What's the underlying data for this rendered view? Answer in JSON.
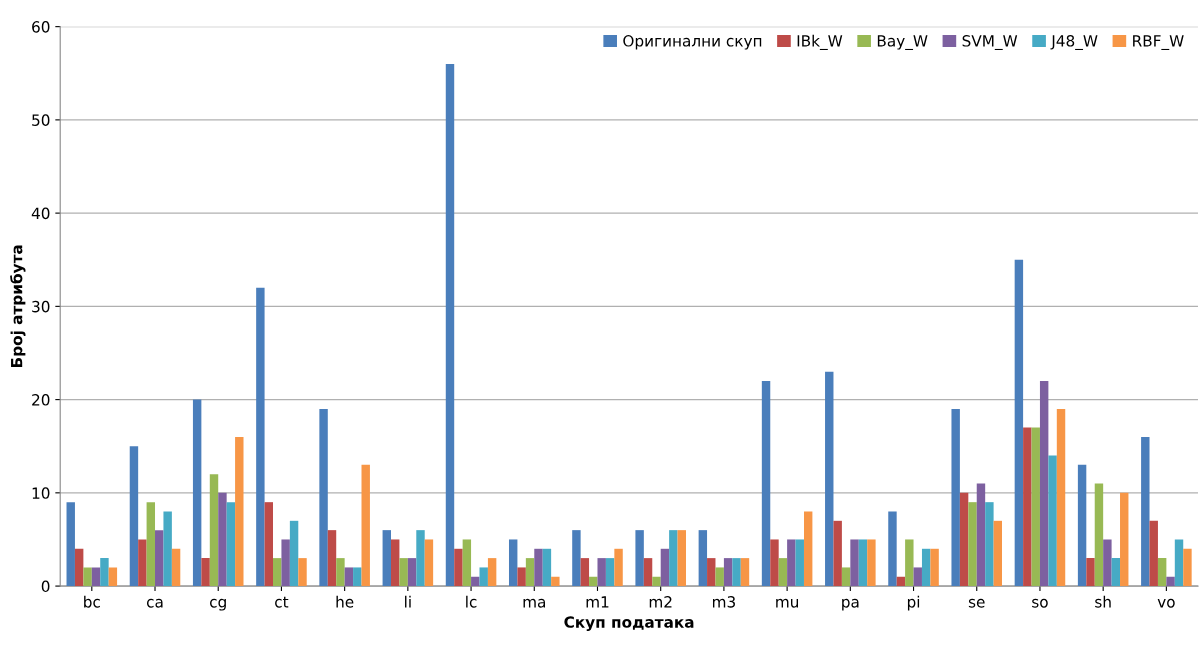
{
  "chart_data": {
    "type": "bar",
    "xlabel": "Скуп података",
    "ylabel": "Број атрибута",
    "categories": [
      "bc",
      "ca",
      "cg",
      "ct",
      "he",
      "li",
      "lc",
      "ma",
      "m1",
      "m2",
      "m3",
      "mu",
      "pa",
      "pi",
      "se",
      "so",
      "sh",
      "vo"
    ],
    "series": [
      {
        "name": "Оригинални скуп",
        "color": "#4a7ebb",
        "values": [
          9,
          15,
          20,
          32,
          19,
          6,
          56,
          5,
          6,
          6,
          6,
          22,
          23,
          8,
          19,
          35,
          13,
          16
        ]
      },
      {
        "name": "IBk_W",
        "color": "#be4b48",
        "values": [
          4,
          5,
          3,
          9,
          6,
          5,
          4,
          2,
          3,
          3,
          3,
          5,
          7,
          1,
          10,
          17,
          3,
          7
        ]
      },
      {
        "name": "Bay_W",
        "color": "#98b954",
        "values": [
          2,
          9,
          12,
          3,
          3,
          3,
          5,
          3,
          1,
          1,
          2,
          3,
          2,
          5,
          9,
          17,
          11,
          3
        ]
      },
      {
        "name": "SVM_W",
        "color": "#7d60a0",
        "values": [
          2,
          6,
          10,
          5,
          2,
          3,
          1,
          4,
          3,
          4,
          3,
          5,
          5,
          2,
          11,
          22,
          5,
          1
        ]
      },
      {
        "name": "J48_W",
        "color": "#46aac5",
        "values": [
          3,
          8,
          9,
          7,
          2,
          6,
          2,
          4,
          3,
          6,
          3,
          5,
          5,
          4,
          9,
          14,
          3,
          5
        ]
      },
      {
        "name": "RBF_W",
        "color": "#f79646",
        "values": [
          2,
          4,
          16,
          3,
          13,
          5,
          3,
          1,
          4,
          6,
          3,
          8,
          5,
          4,
          7,
          19,
          10,
          4
        ]
      }
    ],
    "ylim": [
      0,
      60
    ],
    "yticks": [
      0,
      10,
      20,
      30,
      40,
      50,
      60
    ],
    "grid": "y",
    "legend": "top right"
  }
}
